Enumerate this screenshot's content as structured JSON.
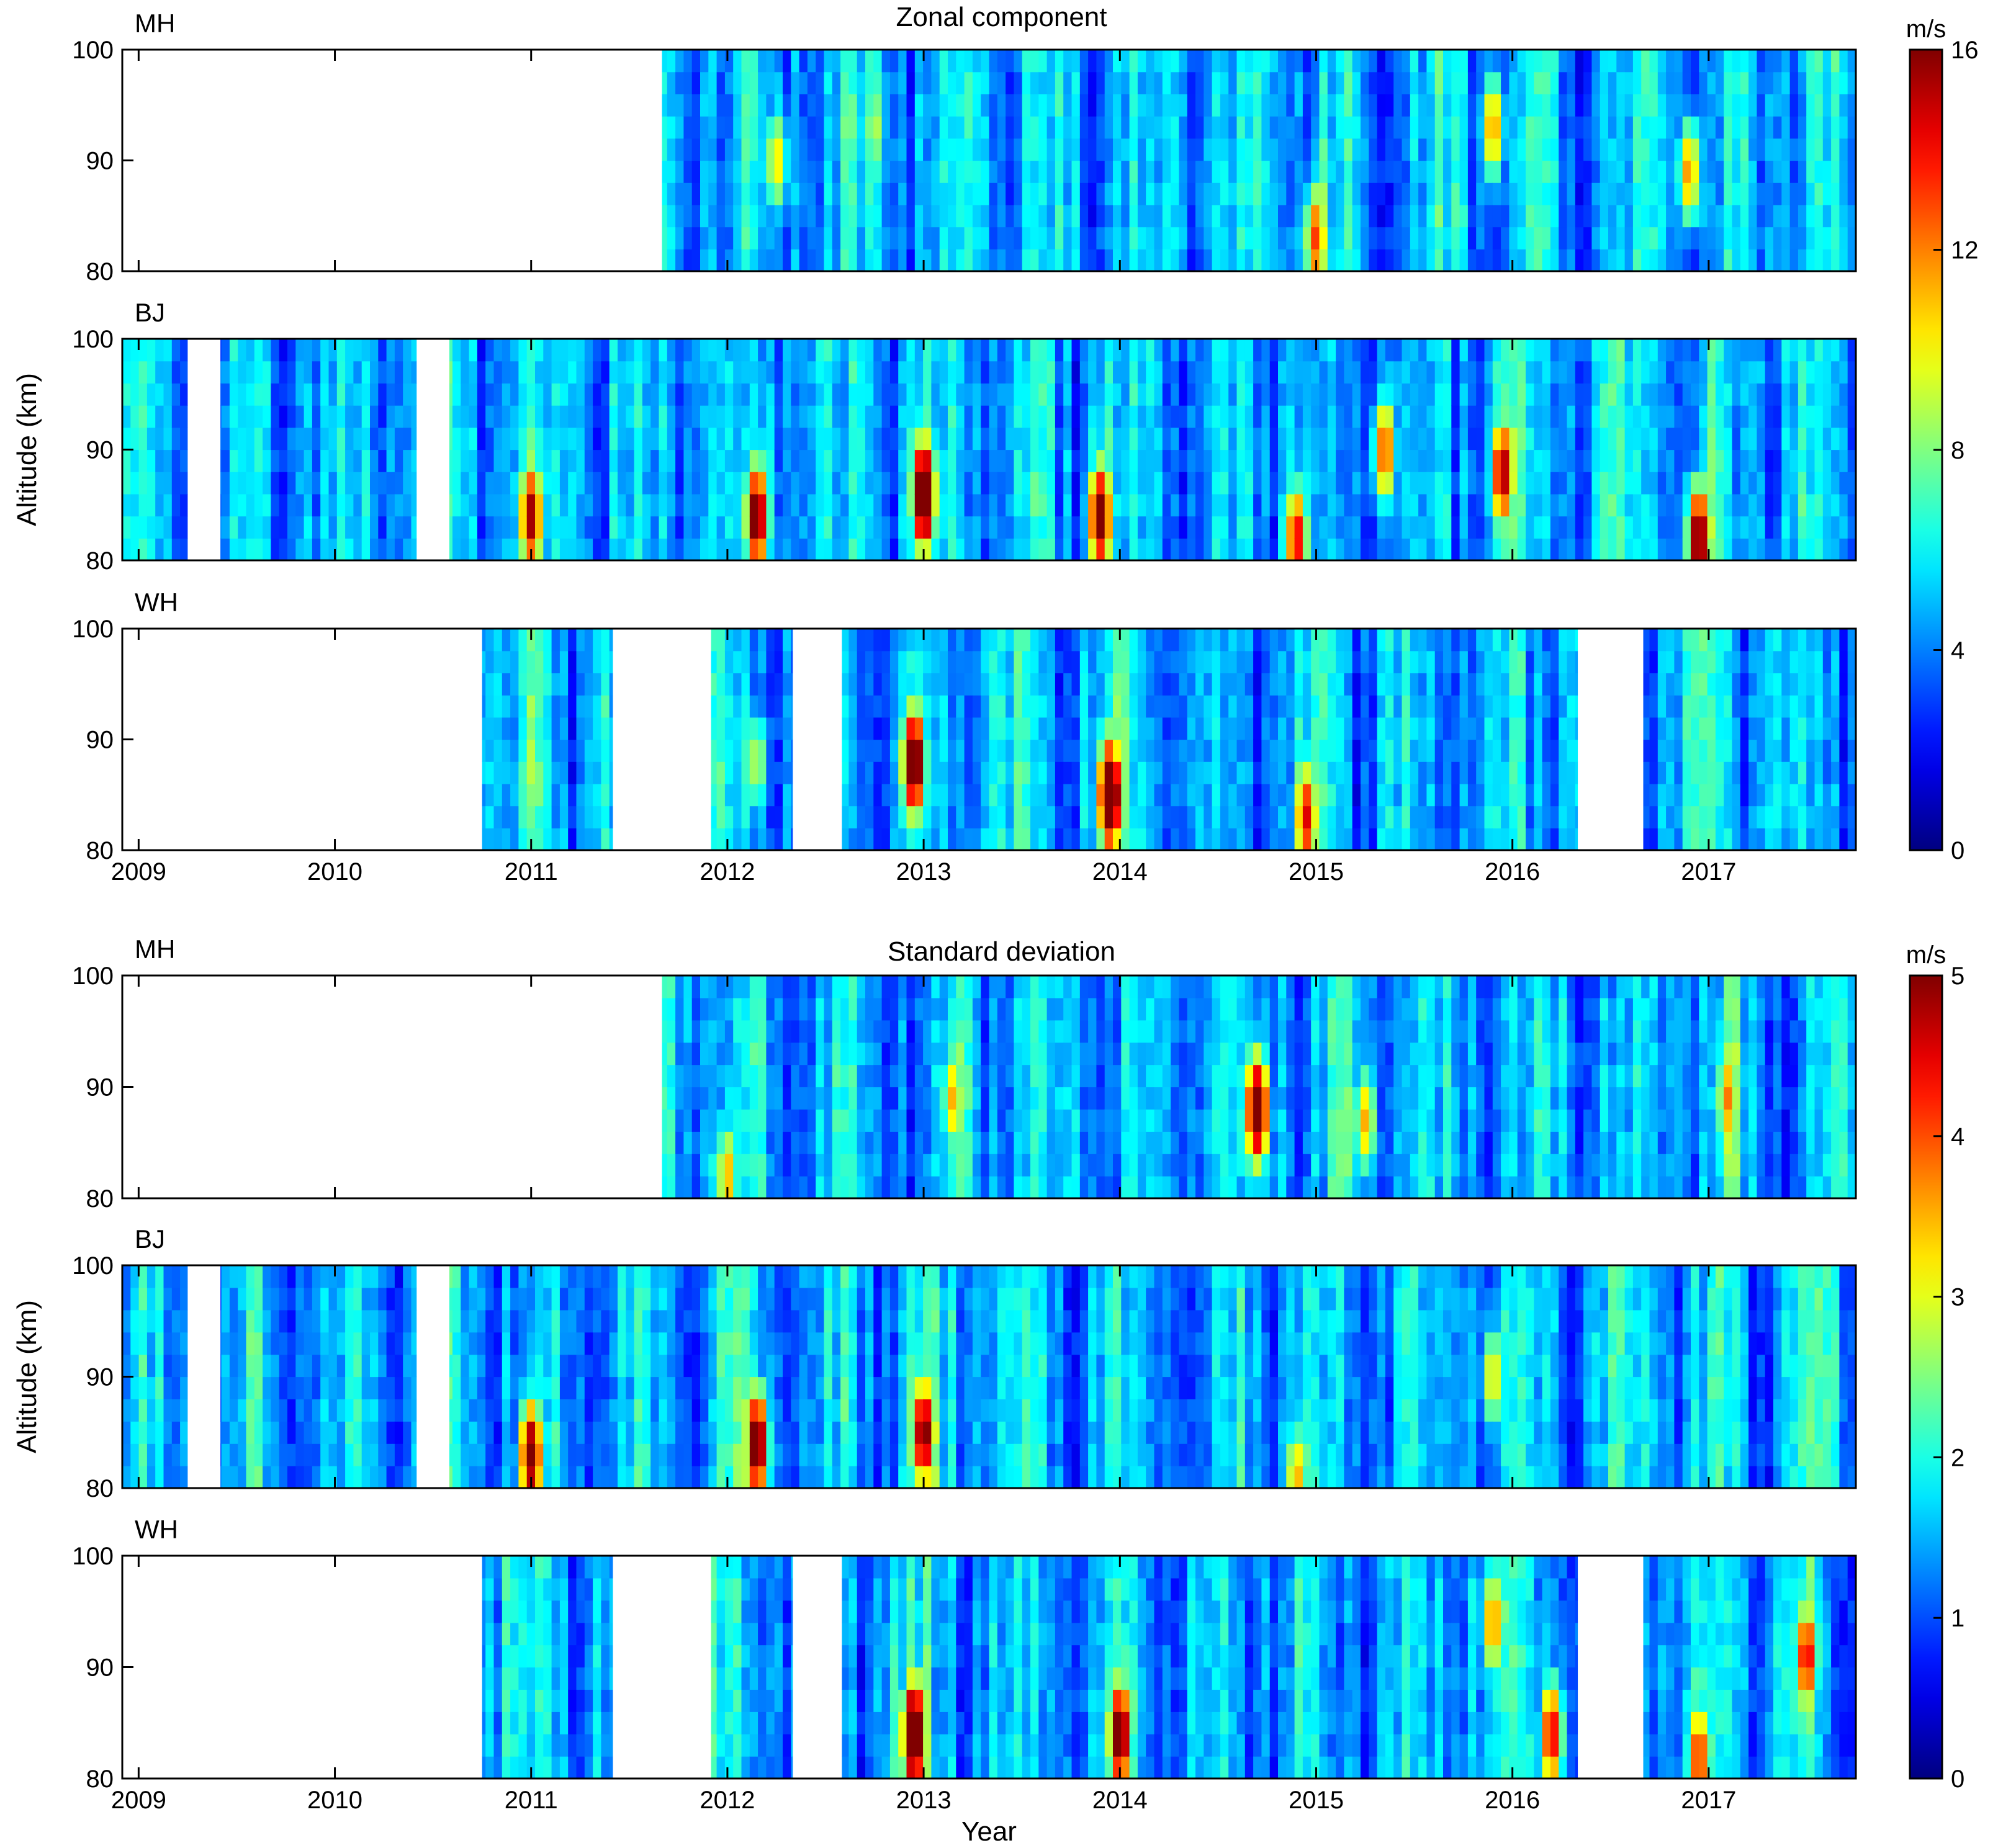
{
  "chart_data": [
    {
      "type": "heatmap",
      "title": "Zonal component",
      "ylabel": "Altitude (km)",
      "xlabel": "",
      "x_range": [
        "2008-12",
        "2017-10"
      ],
      "x_ticks": [
        "2009",
        "2010",
        "2011",
        "2012",
        "2013",
        "2014",
        "2015",
        "2016",
        "2017"
      ],
      "y_ticks": [
        "80",
        "90",
        "100"
      ],
      "ylim": [
        80,
        100
      ],
      "colorbar": {
        "unit": "m/s",
        "range": [
          0,
          16
        ],
        "ticks": [
          "0",
          "4",
          "8",
          "12",
          "16"
        ],
        "colormap": "jet"
      },
      "panels": [
        {
          "station": "MH",
          "data_segments": [
            [
              "2011-09",
              "2017-10"
            ]
          ],
          "peaks": [
            {
              "year": 2015.0,
              "altitude": 83,
              "value": 11
            },
            {
              "year": 2015.9,
              "altitude": 93,
              "value": 10
            },
            {
              "year": 2016.9,
              "altitude": 89,
              "value": 10
            },
            {
              "year": 2012.25,
              "altitude": 90,
              "value": 9
            },
            {
              "year": 2012.75,
              "altitude": 93,
              "value": 8
            }
          ]
        },
        {
          "station": "BJ",
          "data_segments": [
            [
              "2008-12",
              "2009-04"
            ],
            [
              "2009-06",
              "2010-06"
            ],
            [
              "2010-08",
              "2017-10"
            ]
          ],
          "peaks": [
            {
              "year": 2011.0,
              "altitude": 84,
              "value": 13
            },
            {
              "year": 2012.15,
              "altitude": 84,
              "value": 14
            },
            {
              "year": 2013.0,
              "altitude": 86,
              "value": 16
            },
            {
              "year": 2013.9,
              "altitude": 84,
              "value": 14
            },
            {
              "year": 2014.9,
              "altitude": 82,
              "value": 12
            },
            {
              "year": 2015.95,
              "altitude": 88,
              "value": 13
            },
            {
              "year": 2016.95,
              "altitude": 82,
              "value": 14
            },
            {
              "year": 2015.35,
              "altitude": 90,
              "value": 11
            }
          ]
        },
        {
          "station": "WH",
          "data_segments": [
            [
              "2010-10",
              "2011-06"
            ],
            [
              "2011-12",
              "2012-05"
            ],
            [
              "2012-08",
              "2016-05"
            ],
            [
              "2016-09",
              "2017-10"
            ]
          ],
          "peaks": [
            {
              "year": 2012.95,
              "altitude": 88,
              "value": 15
            },
            {
              "year": 2013.95,
              "altitude": 85,
              "value": 16
            },
            {
              "year": 2014.95,
              "altitude": 83,
              "value": 12
            },
            {
              "year": 2012.15,
              "altitude": 88,
              "value": 8
            },
            {
              "year": 2011.0,
              "altitude": 88,
              "value": 8
            }
          ]
        }
      ]
    },
    {
      "type": "heatmap",
      "title": "Standard deviation",
      "ylabel": "Altitude (km)",
      "xlabel": "Year",
      "x_range": [
        "2008-12",
        "2017-10"
      ],
      "x_ticks": [
        "2009",
        "2010",
        "2011",
        "2012",
        "2013",
        "2014",
        "2015",
        "2016",
        "2017"
      ],
      "y_ticks": [
        "80",
        "90",
        "100"
      ],
      "ylim": [
        80,
        100
      ],
      "colorbar": {
        "unit": "m/s",
        "range": [
          0,
          5
        ],
        "ticks": [
          "0",
          "1",
          "2",
          "3",
          "4",
          "5"
        ],
        "colormap": "jet"
      },
      "panels": [
        {
          "station": "MH",
          "data_segments": [
            [
              "2011-09",
              "2017-10"
            ]
          ],
          "peaks": [
            {
              "year": 2014.7,
              "altitude": 88,
              "value": 4.6
            },
            {
              "year": 2013.15,
              "altitude": 89,
              "value": 3.0
            },
            {
              "year": 2012.0,
              "altitude": 82,
              "value": 3.0
            },
            {
              "year": 2015.25,
              "altitude": 87,
              "value": 3.0
            },
            {
              "year": 2017.1,
              "altitude": 89,
              "value": 3.2
            }
          ]
        },
        {
          "station": "BJ",
          "data_segments": [
            [
              "2008-12",
              "2009-04"
            ],
            [
              "2009-06",
              "2010-06"
            ],
            [
              "2010-08",
              "2017-10"
            ]
          ],
          "peaks": [
            {
              "year": 2011.0,
              "altitude": 83,
              "value": 4.3
            },
            {
              "year": 2012.15,
              "altitude": 84,
              "value": 4.5
            },
            {
              "year": 2013.0,
              "altitude": 85,
              "value": 4.3
            },
            {
              "year": 2014.9,
              "altitude": 81,
              "value": 3.0
            },
            {
              "year": 2015.9,
              "altitude": 90,
              "value": 2.8
            }
          ]
        },
        {
          "station": "WH",
          "data_segments": [
            [
              "2010-10",
              "2011-06"
            ],
            [
              "2011-12",
              "2012-05"
            ],
            [
              "2012-08",
              "2016-05"
            ],
            [
              "2016-09",
              "2017-10"
            ]
          ],
          "peaks": [
            {
              "year": 2012.95,
              "altitude": 84,
              "value": 5.0
            },
            {
              "year": 2014.0,
              "altitude": 84,
              "value": 4.5
            },
            {
              "year": 2016.2,
              "altitude": 84,
              "value": 3.8
            },
            {
              "year": 2017.5,
              "altitude": 91,
              "value": 3.8
            },
            {
              "year": 2015.9,
              "altitude": 94,
              "value": 3.2
            },
            {
              "year": 2016.95,
              "altitude": 82,
              "value": 3.6
            }
          ]
        }
      ]
    }
  ]
}
